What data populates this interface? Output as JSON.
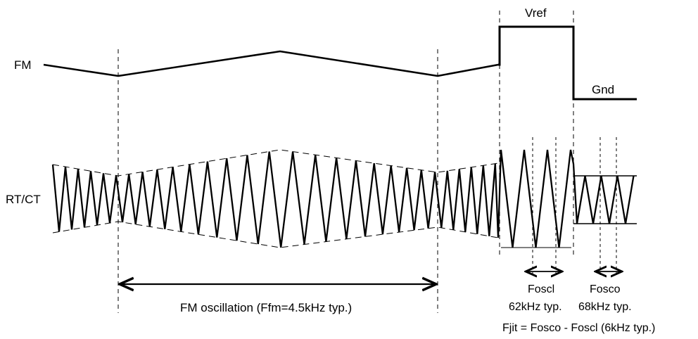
{
  "signals": {
    "fm": "FM",
    "rtct": "RT/CT",
    "vref": "Vref",
    "gnd": "Gnd"
  },
  "annotations": {
    "fm_oscillation": "FM oscillation (Ffm=4.5kHz typ.)",
    "foscl_name": "Foscl",
    "foscl_value": "62kHz typ.",
    "fosco_name": "Fosco",
    "fosco_value": "68kHz typ.",
    "fjit": "Fjit = Fosco - Foscl (6kHz typ.)"
  }
}
